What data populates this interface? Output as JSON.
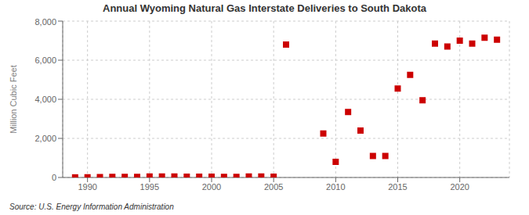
{
  "chart_data": {
    "type": "scatter",
    "title": "Annual Wyoming Natural Gas Interstate Deliveries to South Dakota",
    "y_label": "Million Cubic Feet",
    "annotation": "Source: U.S. Energy Information Administration",
    "x": [
      1989,
      1990,
      1991,
      1992,
      1993,
      1994,
      1995,
      1996,
      1997,
      1998,
      1999,
      2000,
      2001,
      2002,
      2003,
      2004,
      2005,
      2006,
      2009,
      2010,
      2011,
      2012,
      2013,
      2014,
      2015,
      2016,
      2017,
      2018,
      2019,
      2020,
      2021,
      2022,
      2023
    ],
    "values": [
      5,
      10,
      20,
      30,
      30,
      30,
      50,
      50,
      50,
      40,
      40,
      40,
      30,
      30,
      50,
      50,
      40,
      6800,
      2250,
      800,
      3350,
      2400,
      1100,
      1100,
      4550,
      5250,
      3950,
      6850,
      6700,
      7000,
      6850,
      7150,
      7050
    ],
    "color": "#cc0000",
    "marker": "square",
    "xlim": [
      1988,
      2024
    ],
    "xticks": [
      1990,
      1995,
      2000,
      2005,
      2010,
      2015,
      2020
    ],
    "ylim": [
      0,
      8000
    ],
    "yticks": [
      0,
      {
        "value": 2000,
        "label": "2,000"
      },
      {
        "value": 4000,
        "label": "4,000"
      },
      {
        "value": 6000,
        "label": "6,000"
      },
      {
        "value": 8000,
        "label": "8,000"
      }
    ],
    "grid": true
  }
}
